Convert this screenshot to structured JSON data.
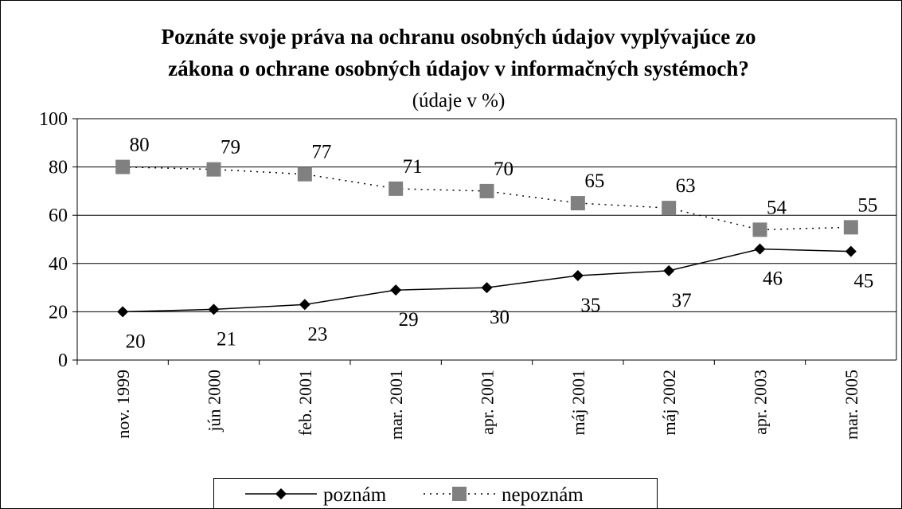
{
  "chart_data": {
    "type": "line",
    "title": [
      "Poznáte svoje práva na ochranu osobných údajov vyplývajúce zo",
      "zákona o ochrane osobných údajov v informačných systémoch?"
    ],
    "subtitle": "(údaje v %)",
    "categories": [
      "nov. 1999",
      "jún 2000",
      "feb. 2001",
      "mar. 2001",
      "apr. 2001",
      "máj 2001",
      "máj 2002",
      "apr. 2003",
      "mar. 2005"
    ],
    "series": [
      {
        "name": "poznám",
        "color": "#000000",
        "values": [
          20,
          21,
          23,
          29,
          30,
          35,
          37,
          46,
          45
        ]
      },
      {
        "name": "nepoznám",
        "color": "#808080",
        "values": [
          80,
          79,
          77,
          71,
          70,
          65,
          63,
          54,
          55
        ]
      }
    ],
    "ylim": [
      0,
      100
    ],
    "yticks": [
      0,
      20,
      40,
      60,
      80,
      100
    ],
    "grid": true,
    "legend": "bottom"
  }
}
